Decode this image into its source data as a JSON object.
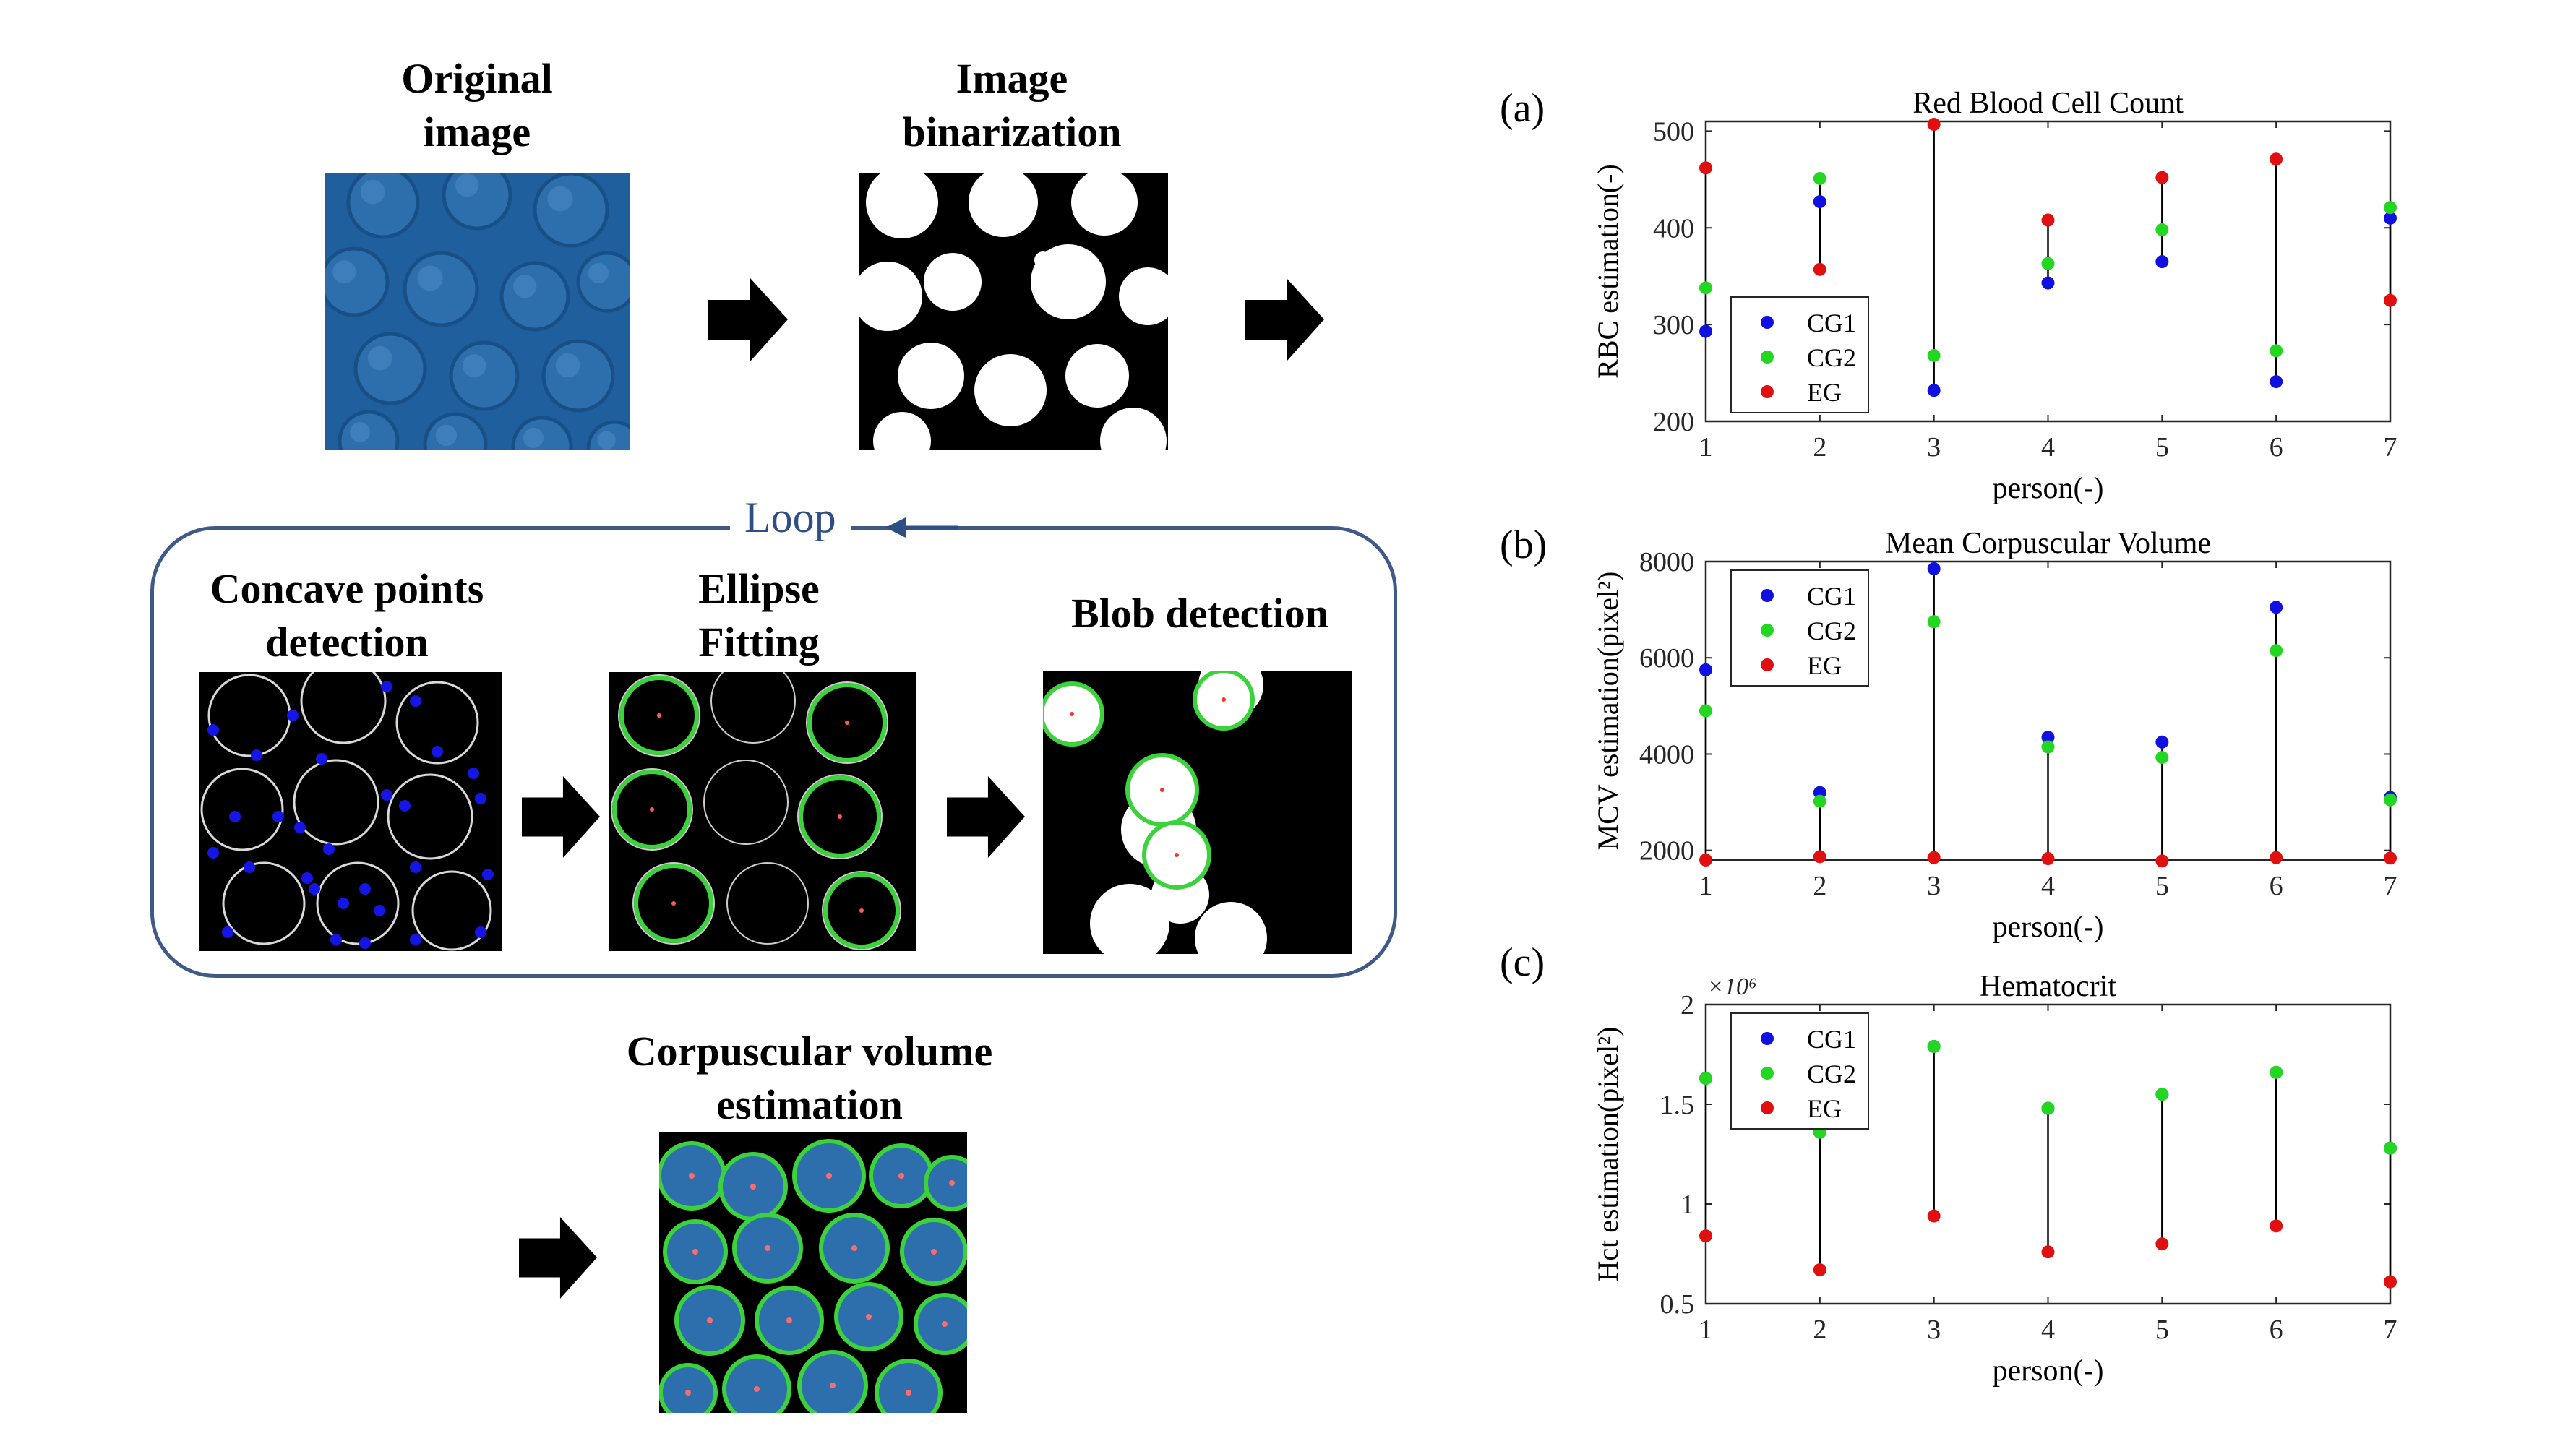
{
  "pipeline": {
    "original_title": "Original\nimage",
    "binarization_title": "Image\nbinarization",
    "loop_label": "Loop",
    "concave_title": "Concave points\ndetection",
    "ellipse_title": "Ellipse\nFitting",
    "blob_title": "Blob detection",
    "volume_title": "Corpuscular volume\nestimation"
  },
  "colors": {
    "CG1": "#1010e0",
    "CG2": "#22d622",
    "EG": "#e01010",
    "loop_border": "#3f5a86",
    "cell_blue": "#2d6fad"
  },
  "chart_data": [
    {
      "panel": "(a)",
      "type": "scatter",
      "title": "Red Blood Cell Count",
      "xlabel": "person(-)",
      "ylabel": "RBC estimation(-)",
      "x": [
        1,
        2,
        3,
        4,
        5,
        6,
        7
      ],
      "xlim": [
        1,
        7
      ],
      "ylim": [
        200,
        510
      ],
      "yticks": [
        200,
        300,
        400,
        500
      ],
      "ytick_labels": [
        "200",
        "300",
        "400",
        "500"
      ],
      "exponent": "",
      "legend_position": "bottom-left",
      "series": [
        {
          "name": "CG1",
          "values": [
            293,
            427,
            232,
            343,
            365,
            241,
            410
          ]
        },
        {
          "name": "CG2",
          "values": [
            338,
            451,
            268,
            363,
            398,
            273,
            421
          ]
        },
        {
          "name": "EG",
          "values": [
            462,
            357,
            507,
            408,
            452,
            471,
            325
          ]
        }
      ]
    },
    {
      "panel": "(b)",
      "type": "scatter",
      "title": "Mean Corpuscular Volume",
      "xlabel": "person(-)",
      "ylabel": "MCV estimation(pixel²)",
      "x": [
        1,
        2,
        3,
        4,
        5,
        6,
        7
      ],
      "xlim": [
        1,
        7
      ],
      "ylim": [
        1800,
        8000
      ],
      "yticks": [
        2000,
        4000,
        6000,
        8000
      ],
      "ytick_labels": [
        "2000",
        "4000",
        "6000",
        "8000"
      ],
      "exponent": "",
      "legend_position": "top-left",
      "series": [
        {
          "name": "CG1",
          "values": [
            5750,
            3200,
            7850,
            4350,
            4250,
            7050,
            3100
          ]
        },
        {
          "name": "CG2",
          "values": [
            4900,
            3020,
            6750,
            4150,
            3930,
            6150,
            3050
          ]
        },
        {
          "name": "EG",
          "values": [
            1800,
            1870,
            1850,
            1830,
            1780,
            1850,
            1840
          ]
        }
      ]
    },
    {
      "panel": "(c)",
      "type": "scatter",
      "title": "Hematocrit",
      "xlabel": "person(-)",
      "ylabel": "Hct estimation(pixel²)",
      "x": [
        1,
        2,
        3,
        4,
        5,
        6,
        7
      ],
      "xlim": [
        1,
        7
      ],
      "ylim": [
        0.5,
        2.0
      ],
      "yticks": [
        0.5,
        1.0,
        1.5,
        2.0
      ],
      "ytick_labels": [
        "0.5",
        "1",
        "1.5",
        "2"
      ],
      "exponent": "×10⁶",
      "legend_position": "top-left",
      "series": [
        {
          "name": "CG1",
          "values": [
            1.63,
            1.36,
            1.79,
            1.48,
            1.55,
            1.66,
            1.28
          ]
        },
        {
          "name": "CG2",
          "values": [
            1.63,
            1.36,
            1.79,
            1.48,
            1.55,
            1.66,
            1.28
          ]
        },
        {
          "name": "EG",
          "values": [
            0.84,
            0.67,
            0.94,
            0.76,
            0.8,
            0.89,
            0.61
          ]
        }
      ]
    }
  ]
}
